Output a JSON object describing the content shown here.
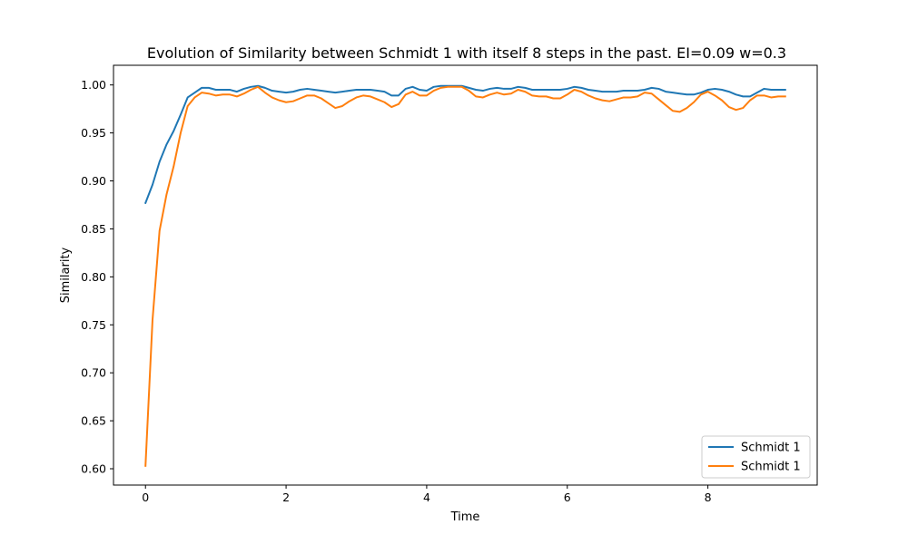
{
  "chart_data": {
    "type": "line",
    "title": "Evolution of Similarity between Schmidt 1 with itself 8 steps in the past. EI=0.09 w=0.3",
    "xlabel": "Time",
    "ylabel": "Similarity",
    "xlim": [
      -0.455,
      9.555
    ],
    "ylim": [
      0.583,
      1.0205
    ],
    "xticks": [
      0,
      2,
      4,
      6,
      8
    ],
    "yticks": [
      0.6,
      0.65,
      0.7,
      0.75,
      0.8,
      0.85,
      0.9,
      0.95,
      1.0
    ],
    "ytick_labels": [
      "0.60",
      "0.65",
      "0.70",
      "0.75",
      "0.80",
      "0.85",
      "0.90",
      "0.95",
      "1.00"
    ],
    "grid": false,
    "legend_position": "lower right",
    "x": [
      0.0,
      0.1,
      0.2,
      0.3,
      0.4,
      0.5,
      0.6,
      0.7,
      0.8,
      0.9,
      1.0,
      1.1,
      1.2,
      1.3,
      1.4,
      1.5,
      1.6,
      1.7,
      1.8,
      1.9,
      2.0,
      2.1,
      2.2,
      2.3,
      2.4,
      2.5,
      2.6,
      2.7,
      2.8,
      2.9,
      3.0,
      3.1,
      3.2,
      3.3,
      3.4,
      3.5,
      3.6,
      3.7,
      3.8,
      3.9,
      4.0,
      4.1,
      4.2,
      4.3,
      4.4,
      4.5,
      4.6,
      4.7,
      4.8,
      4.9,
      5.0,
      5.1,
      5.2,
      5.3,
      5.4,
      5.5,
      5.6,
      5.7,
      5.8,
      5.9,
      6.0,
      6.1,
      6.2,
      6.3,
      6.4,
      6.5,
      6.6,
      6.7,
      6.8,
      6.9,
      7.0,
      7.1,
      7.2,
      7.3,
      7.4,
      7.5,
      7.6,
      7.7,
      7.8,
      7.9,
      8.0,
      8.1,
      8.2,
      8.3,
      8.4,
      8.5,
      8.6,
      8.7,
      8.8,
      8.9,
      9.0,
      9.1
    ],
    "series": [
      {
        "name": "Schmidt 1",
        "color": "#1f77b4",
        "values": [
          0.877,
          0.896,
          0.92,
          0.938,
          0.952,
          0.969,
          0.987,
          0.992,
          0.997,
          0.997,
          0.995,
          0.995,
          0.995,
          0.993,
          0.996,
          0.998,
          0.999,
          0.997,
          0.994,
          0.993,
          0.992,
          0.993,
          0.995,
          0.996,
          0.995,
          0.994,
          0.993,
          0.992,
          0.993,
          0.994,
          0.995,
          0.995,
          0.995,
          0.994,
          0.993,
          0.989,
          0.989,
          0.996,
          0.998,
          0.995,
          0.994,
          0.998,
          0.999,
          0.999,
          0.999,
          0.999,
          0.997,
          0.995,
          0.994,
          0.996,
          0.997,
          0.996,
          0.996,
          0.998,
          0.997,
          0.995,
          0.995,
          0.995,
          0.995,
          0.995,
          0.996,
          0.998,
          0.997,
          0.995,
          0.994,
          0.993,
          0.993,
          0.993,
          0.994,
          0.994,
          0.994,
          0.995,
          0.997,
          0.996,
          0.993,
          0.992,
          0.991,
          0.99,
          0.99,
          0.992,
          0.995,
          0.996,
          0.995,
          0.993,
          0.99,
          0.988,
          0.988,
          0.992,
          0.996,
          0.995,
          0.995,
          0.995
        ]
      },
      {
        "name": "Schmidt 1",
        "color": "#ff7f0e",
        "values": [
          0.603,
          0.755,
          0.848,
          0.886,
          0.915,
          0.95,
          0.978,
          0.987,
          0.992,
          0.991,
          0.989,
          0.99,
          0.99,
          0.988,
          0.991,
          0.995,
          0.998,
          0.992,
          0.987,
          0.984,
          0.982,
          0.983,
          0.986,
          0.989,
          0.989,
          0.986,
          0.981,
          0.976,
          0.978,
          0.983,
          0.987,
          0.989,
          0.988,
          0.985,
          0.982,
          0.977,
          0.98,
          0.99,
          0.993,
          0.989,
          0.989,
          0.994,
          0.997,
          0.998,
          0.998,
          0.998,
          0.994,
          0.988,
          0.987,
          0.99,
          0.992,
          0.99,
          0.991,
          0.995,
          0.993,
          0.989,
          0.988,
          0.988,
          0.986,
          0.986,
          0.99,
          0.995,
          0.993,
          0.989,
          0.986,
          0.984,
          0.983,
          0.985,
          0.987,
          0.987,
          0.988,
          0.992,
          0.991,
          0.985,
          0.979,
          0.973,
          0.972,
          0.976,
          0.982,
          0.99,
          0.993,
          0.989,
          0.984,
          0.977,
          0.974,
          0.976,
          0.984,
          0.989,
          0.989,
          0.987,
          0.988,
          0.988
        ]
      }
    ]
  }
}
